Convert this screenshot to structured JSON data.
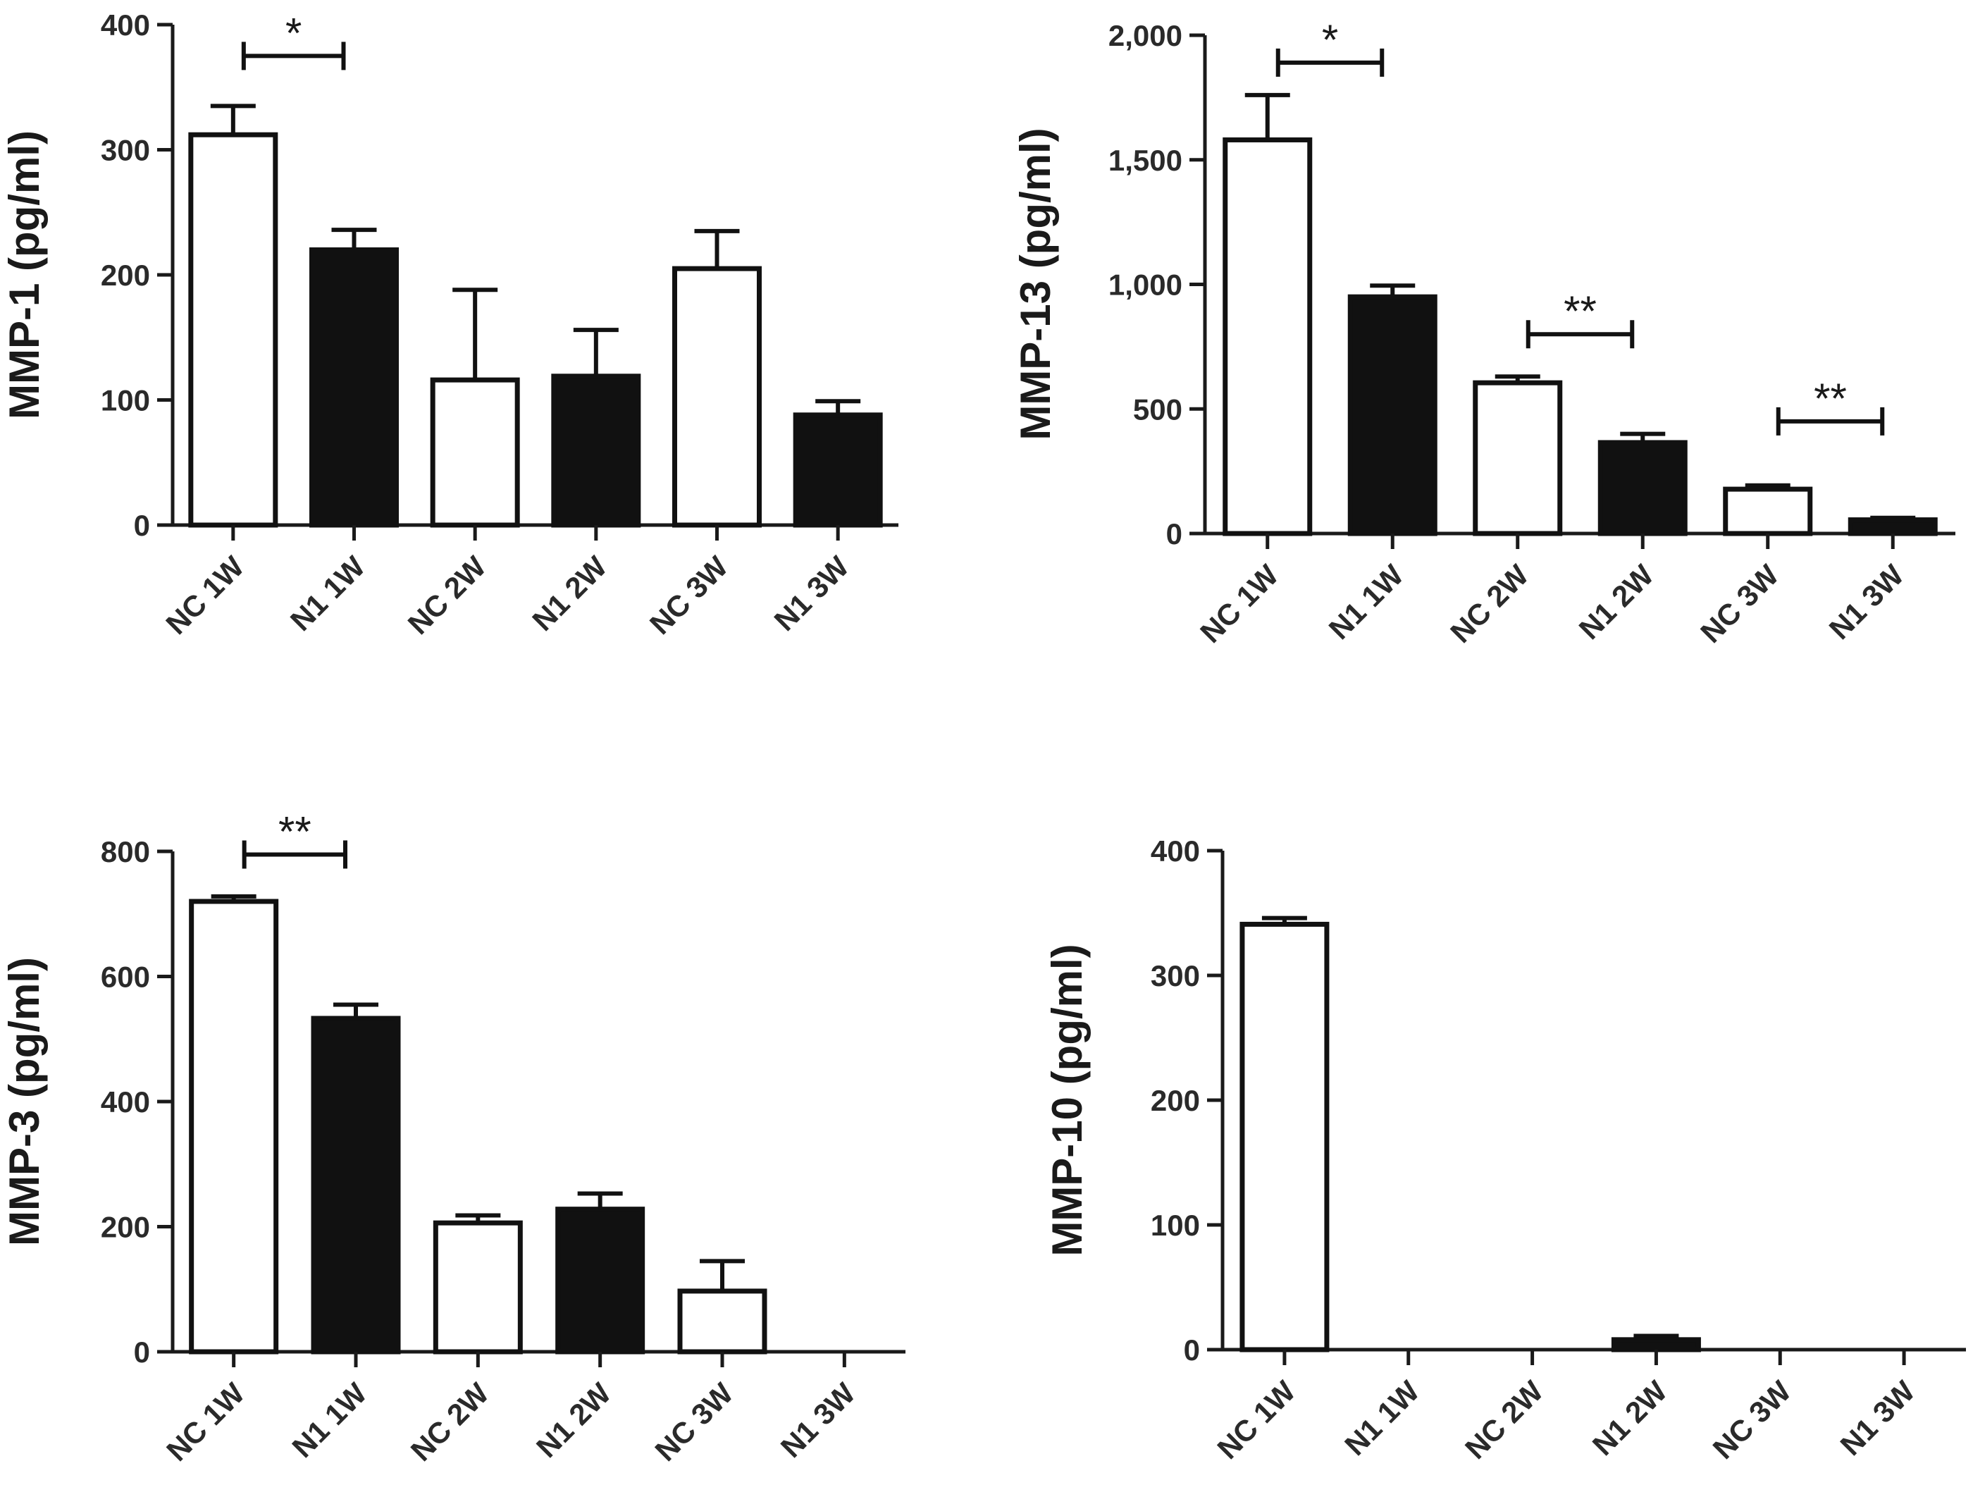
{
  "chart_data": [
    {
      "type": "bar",
      "id": "mmp1",
      "ylabel": "MMP-1 (pg/ml)",
      "ylim": [
        0,
        400
      ],
      "ticks": [
        0,
        100,
        200,
        300,
        400
      ],
      "tick_labels": [
        "0",
        "100",
        "200",
        "300",
        "400"
      ],
      "categories": [
        "NC 1W",
        "N1 1W",
        "NC 2W",
        "N1 2W",
        "NC 3W",
        "N1 3W"
      ],
      "fills": [
        "white",
        "black",
        "white",
        "black",
        "white",
        "black"
      ],
      "values": [
        312,
        220,
        116,
        119,
        205,
        88
      ],
      "errors": [
        23,
        16,
        72,
        37,
        30,
        11
      ],
      "significance": [
        {
          "from": 0,
          "to": 1,
          "y": 375,
          "label": "*"
        }
      ]
    },
    {
      "type": "bar",
      "id": "mmp13",
      "ylabel": "MMP-13 (pg/ml)",
      "ylim": [
        0,
        2000
      ],
      "ticks": [
        0,
        500,
        1000,
        1500,
        2000
      ],
      "tick_labels": [
        "0",
        "500",
        "1,000",
        "1,500",
        "2,000"
      ],
      "categories": [
        "NC 1W",
        "N1 1W",
        "NC 2W",
        "N1 2W",
        "NC 3W",
        "N1 3W"
      ],
      "fills": [
        "white",
        "black",
        "white",
        "black",
        "white",
        "black"
      ],
      "values": [
        1580,
        950,
        605,
        365,
        178,
        55
      ],
      "errors": [
        180,
        45,
        25,
        35,
        15,
        8
      ],
      "significance": [
        {
          "from": 0,
          "to": 1,
          "y": 1890,
          "label": "*"
        },
        {
          "from": 2,
          "to": 3,
          "y": 800,
          "label": "**"
        },
        {
          "from": 4,
          "to": 5,
          "y": 450,
          "label": "**"
        }
      ]
    },
    {
      "type": "bar",
      "id": "mmp3",
      "ylabel": "MMP-3 (pg/ml)",
      "ylim": [
        0,
        800
      ],
      "ticks": [
        0,
        200,
        400,
        600,
        800
      ],
      "tick_labels": [
        "0",
        "200",
        "400",
        "600",
        "800"
      ],
      "categories": [
        "NC 1W",
        "N1 1W",
        "NC 2W",
        "N1 2W",
        "NC 3W",
        "N1 3W"
      ],
      "fills": [
        "white",
        "black",
        "white",
        "black",
        "white",
        "black"
      ],
      "values": [
        720,
        533,
        206,
        228,
        97,
        0
      ],
      "errors": [
        8,
        22,
        12,
        25,
        48,
        0
      ],
      "significance": [
        {
          "from": 0,
          "to": 1,
          "y": 795,
          "label": "**"
        }
      ]
    },
    {
      "type": "bar",
      "id": "mmp10",
      "ylabel": "MMP-10 (pg/ml)",
      "ylim": [
        0,
        400
      ],
      "ticks": [
        0,
        100,
        200,
        300,
        400
      ],
      "tick_labels": [
        "0",
        "100",
        "200",
        "300",
        "400"
      ],
      "categories": [
        "NC 1W",
        "N1 1W",
        "NC 2W",
        "N1 2W",
        "NC 3W",
        "N1 3W"
      ],
      "fills": [
        "white",
        "black",
        "white",
        "black",
        "white",
        "black"
      ],
      "values": [
        341,
        0,
        0,
        8,
        0,
        0
      ],
      "errors": [
        5,
        0,
        0,
        3,
        0,
        0
      ],
      "significance": []
    }
  ]
}
